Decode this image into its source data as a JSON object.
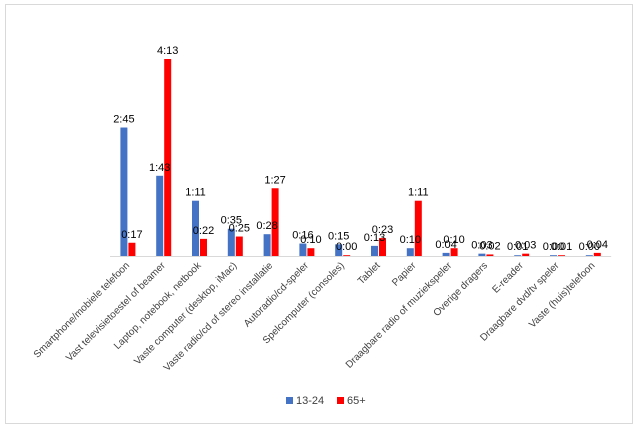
{
  "chart_data": {
    "type": "bar",
    "title": "",
    "xlabel": "",
    "ylabel": "",
    "value_unit": "minutes",
    "ylim": [
      0,
      260
    ],
    "grid": false,
    "legend_position": "bottom",
    "categories": [
      "Smartphone/mobiele telefoon",
      "Vast televisietoestel of beamer",
      "Laptop, notebook, netbook",
      "Vaste computer (desktop, iMac)",
      "Vaste radio/cd of stereo installatie",
      "Autoradio/cd-speler",
      "Spelcomputer (consoles)",
      "Tablet",
      "Papier",
      "Draagbare radio of muziekspeler",
      "Overige dragers",
      "E-reader",
      "Draagbare dvd/tv speler",
      "Vaste (huis)telefoon"
    ],
    "series": [
      {
        "name": "13-24",
        "color": "#4472c4",
        "values": [
          165,
          103,
          71,
          35,
          28,
          16,
          15,
          13,
          10,
          4,
          3,
          1,
          0,
          0
        ],
        "labels": [
          "2:45",
          "1:43",
          "1:11",
          "0:35",
          "0:28",
          "0:16",
          "0:15",
          "0:13",
          "0:10",
          "0:04",
          "0:03",
          "0:01",
          "0:00",
          "0:00"
        ]
      },
      {
        "name": "65+",
        "color": "#ff0000",
        "values": [
          17,
          253,
          22,
          25,
          87,
          10,
          0,
          23,
          71,
          10,
          2,
          3,
          1,
          4
        ],
        "labels": [
          "0:17",
          "4:13",
          "0:22",
          "0:25",
          "1:27",
          "0:10",
          "0:00",
          "0:23",
          "1:11",
          "0:10",
          "0:02",
          "0:03",
          "0:01",
          "0:04"
        ]
      }
    ]
  }
}
